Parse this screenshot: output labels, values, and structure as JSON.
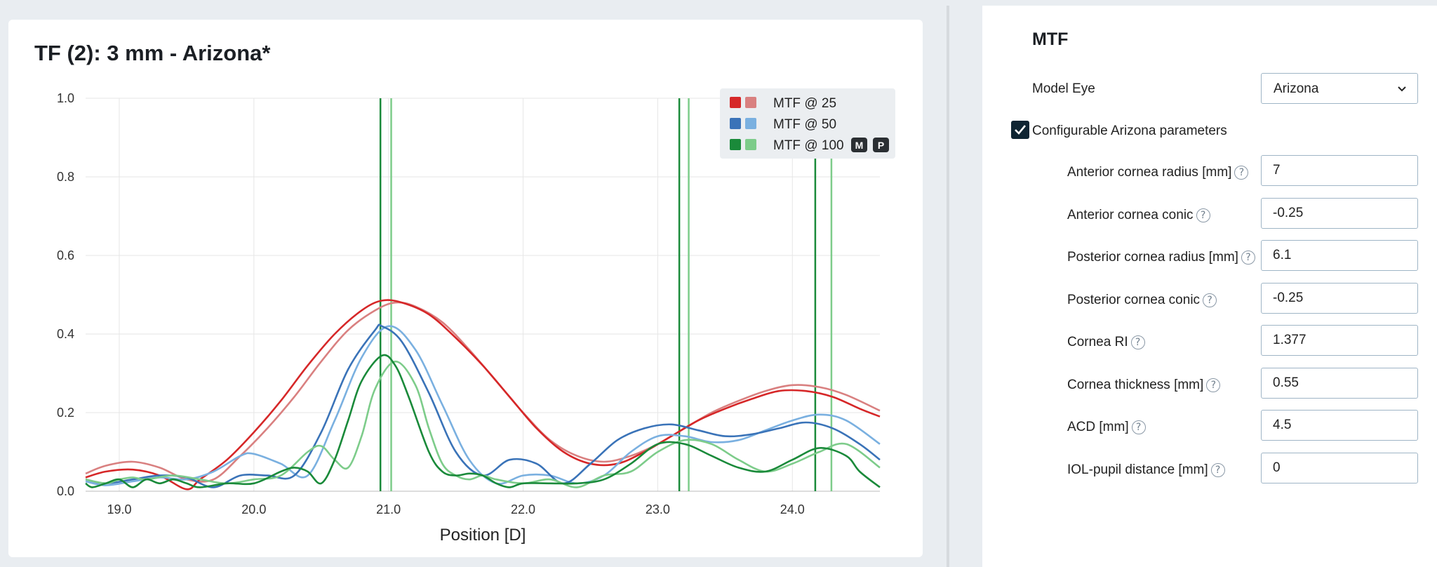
{
  "chart_title": "TF (2): 3 mm - Arizona*",
  "chart_data": {
    "type": "line",
    "title": "TF (2): 3 mm - Arizona*",
    "xlabel": "Position [D]",
    "ylabel": "",
    "xlim": [
      18.75,
      24.65
    ],
    "ylim": [
      0,
      1.0
    ],
    "x_ticks": [
      "19.0",
      "20.0",
      "21.0",
      "22.0",
      "23.0",
      "24.0"
    ],
    "x_tick_values": [
      19.0,
      20.0,
      21.0,
      22.0,
      23.0,
      24.0
    ],
    "y_ticks": [
      "0.0",
      "0.2",
      "0.4",
      "0.6",
      "0.8",
      "1.0"
    ],
    "y_tick_values": [
      0.0,
      0.2,
      0.4,
      0.6,
      0.8,
      1.0
    ],
    "grid": true,
    "legend_position": "top-right",
    "legend": [
      {
        "label": "MTF @ 25",
        "colors": [
          "#d62728",
          "#d98080"
        ]
      },
      {
        "label": "MTF @ 50",
        "colors": [
          "#3a73b8",
          "#7ab0e0"
        ]
      },
      {
        "label": "MTF @ 100",
        "colors": [
          "#1a8a3a",
          "#7dcc8a"
        ],
        "badges": [
          "M",
          "P"
        ]
      }
    ],
    "series": [
      {
        "name": "MTF @ 25",
        "color": "#d62728",
        "x": [
          18.75,
          18.9,
          19.1,
          19.3,
          19.5,
          19.6,
          19.8,
          20.0,
          20.2,
          20.4,
          20.6,
          20.8,
          20.95,
          21.1,
          21.3,
          21.5,
          21.7,
          21.9,
          22.1,
          22.3,
          22.5,
          22.7,
          22.9,
          23.1,
          23.3,
          23.5,
          23.7,
          23.9,
          24.1,
          24.3,
          24.5,
          24.65
        ],
        "y": [
          0.035,
          0.05,
          0.055,
          0.04,
          0.005,
          0.03,
          0.08,
          0.15,
          0.23,
          0.32,
          0.4,
          0.46,
          0.485,
          0.48,
          0.45,
          0.39,
          0.32,
          0.24,
          0.16,
          0.1,
          0.07,
          0.07,
          0.1,
          0.14,
          0.18,
          0.21,
          0.235,
          0.255,
          0.255,
          0.24,
          0.21,
          0.19
        ]
      },
      {
        "name": "MTF @ 25",
        "color": "#d98080",
        "x": [
          18.75,
          18.9,
          19.1,
          19.3,
          19.5,
          19.7,
          19.9,
          20.1,
          20.3,
          20.5,
          20.7,
          20.9,
          21.05,
          21.2,
          21.4,
          21.6,
          21.8,
          22.0,
          22.2,
          22.4,
          22.6,
          22.8,
          23.0,
          23.2,
          23.4,
          23.6,
          23.8,
          24.0,
          24.2,
          24.4,
          24.65
        ],
        "y": [
          0.045,
          0.065,
          0.075,
          0.06,
          0.03,
          0.03,
          0.09,
          0.16,
          0.24,
          0.33,
          0.41,
          0.46,
          0.48,
          0.47,
          0.43,
          0.36,
          0.28,
          0.2,
          0.13,
          0.09,
          0.075,
          0.09,
          0.12,
          0.16,
          0.2,
          0.23,
          0.255,
          0.27,
          0.265,
          0.245,
          0.205
        ]
      },
      {
        "name": "MTF @ 50",
        "color": "#3a73b8",
        "x": [
          18.75,
          18.9,
          19.1,
          19.3,
          19.5,
          19.7,
          19.9,
          20.1,
          20.3,
          20.5,
          20.7,
          20.9,
          20.95,
          21.1,
          21.3,
          21.5,
          21.7,
          21.9,
          22.1,
          22.3,
          22.5,
          22.7,
          22.9,
          23.1,
          23.3,
          23.5,
          23.7,
          23.9,
          24.1,
          24.3,
          24.5,
          24.65
        ],
        "y": [
          0.03,
          0.02,
          0.03,
          0.04,
          0.035,
          0.01,
          0.04,
          0.04,
          0.04,
          0.15,
          0.31,
          0.41,
          0.42,
          0.38,
          0.25,
          0.1,
          0.04,
          0.08,
          0.07,
          0.02,
          0.07,
          0.13,
          0.16,
          0.17,
          0.155,
          0.14,
          0.145,
          0.16,
          0.175,
          0.16,
          0.12,
          0.08
        ]
      },
      {
        "name": "MTF @ 50",
        "color": "#7ab0e0",
        "x": [
          18.75,
          18.9,
          19.1,
          19.3,
          19.5,
          19.7,
          19.9,
          20.0,
          20.2,
          20.4,
          20.6,
          20.8,
          21.0,
          21.2,
          21.4,
          21.6,
          21.8,
          22.0,
          22.2,
          22.4,
          22.6,
          22.8,
          23.0,
          23.2,
          23.4,
          23.6,
          23.8,
          24.0,
          24.2,
          24.4,
          24.65
        ],
        "y": [
          0.025,
          0.015,
          0.025,
          0.035,
          0.03,
          0.05,
          0.09,
          0.095,
          0.07,
          0.04,
          0.18,
          0.34,
          0.42,
          0.36,
          0.22,
          0.08,
          0.02,
          0.04,
          0.04,
          0.02,
          0.04,
          0.1,
          0.14,
          0.14,
          0.125,
          0.13,
          0.155,
          0.18,
          0.195,
          0.18,
          0.12
        ]
      },
      {
        "name": "MTF @ 100",
        "color": "#1a8a3a",
        "x": [
          18.75,
          18.8,
          18.9,
          19.0,
          19.1,
          19.2,
          19.3,
          19.4,
          19.5,
          19.6,
          19.8,
          20.0,
          20.2,
          20.3,
          20.4,
          20.5,
          20.6,
          20.7,
          20.8,
          20.95,
          21.05,
          21.15,
          21.3,
          21.4,
          21.5,
          21.6,
          21.7,
          21.8,
          21.9,
          22.0,
          22.2,
          22.4,
          22.6,
          22.8,
          23.0,
          23.2,
          23.4,
          23.6,
          23.8,
          24.0,
          24.2,
          24.4,
          24.5,
          24.65
        ],
        "y": [
          0.02,
          0.01,
          0.02,
          0.03,
          0.01,
          0.03,
          0.02,
          0.03,
          0.02,
          0.01,
          0.02,
          0.02,
          0.05,
          0.06,
          0.05,
          0.02,
          0.08,
          0.18,
          0.28,
          0.345,
          0.32,
          0.24,
          0.1,
          0.05,
          0.04,
          0.045,
          0.04,
          0.02,
          0.01,
          0.02,
          0.02,
          0.02,
          0.03,
          0.07,
          0.12,
          0.12,
          0.09,
          0.06,
          0.05,
          0.08,
          0.11,
          0.09,
          0.05,
          0.01
        ]
      },
      {
        "name": "MTF @ 100",
        "color": "#7dcc8a",
        "x": [
          18.75,
          18.9,
          19.0,
          19.1,
          19.2,
          19.4,
          19.6,
          19.8,
          20.0,
          20.2,
          20.4,
          20.5,
          20.6,
          20.7,
          20.8,
          20.9,
          21.05,
          21.2,
          21.3,
          21.4,
          21.5,
          21.6,
          21.7,
          21.8,
          22.0,
          22.2,
          22.4,
          22.6,
          22.8,
          23.0,
          23.2,
          23.4,
          23.6,
          23.8,
          24.0,
          24.2,
          24.4,
          24.65
        ],
        "y": [
          0.03,
          0.02,
          0.03,
          0.035,
          0.03,
          0.04,
          0.03,
          0.02,
          0.03,
          0.04,
          0.1,
          0.115,
          0.08,
          0.06,
          0.14,
          0.26,
          0.33,
          0.27,
          0.16,
          0.07,
          0.04,
          0.03,
          0.04,
          0.03,
          0.02,
          0.03,
          0.01,
          0.04,
          0.05,
          0.1,
          0.13,
          0.12,
          0.08,
          0.05,
          0.07,
          0.1,
          0.12,
          0.06
        ]
      }
    ],
    "vertical_markers": [
      {
        "x": 20.94,
        "color": "#1a8a3a"
      },
      {
        "x": 21.02,
        "color": "#7dcc8a"
      },
      {
        "x": 23.16,
        "color": "#1a8a3a"
      },
      {
        "x": 23.23,
        "color": "#7dcc8a"
      },
      {
        "x": 24.17,
        "color": "#1a8a3a"
      },
      {
        "x": 24.29,
        "color": "#7dcc8a"
      }
    ]
  },
  "panel": {
    "title": "MTF",
    "model_eye_label": "Model Eye",
    "model_eye_value": "Arizona",
    "configurable_label": "Configurable Arizona parameters",
    "configurable_checked": true,
    "params": [
      {
        "label": "Anterior cornea radius [mm]",
        "value": "7"
      },
      {
        "label": "Anterior cornea conic",
        "value": "-0.25"
      },
      {
        "label": "Posterior cornea radius [mm]",
        "value": "6.1"
      },
      {
        "label": "Posterior cornea conic",
        "value": "-0.25"
      },
      {
        "label": "Cornea RI",
        "value": "1.377"
      },
      {
        "label": "Cornea thickness [mm]",
        "value": "0.55"
      },
      {
        "label": "ACD [mm]",
        "value": "4.5"
      },
      {
        "label": "IOL-pupil distance [mm]",
        "value": "0"
      }
    ]
  }
}
